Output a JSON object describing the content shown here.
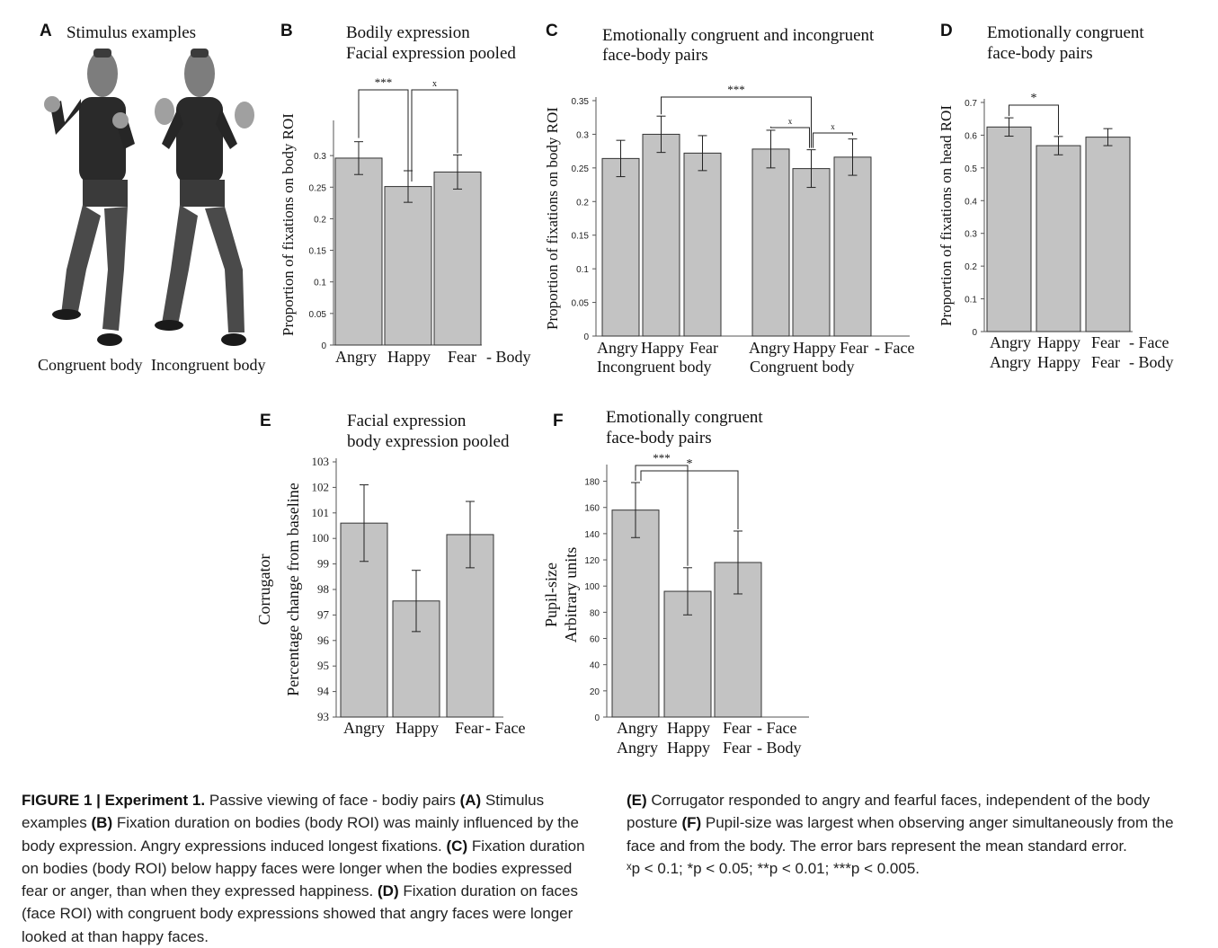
{
  "panels": {
    "A": {
      "letter": "A",
      "title": "Stimulus examples",
      "labels": [
        "Congruent body",
        "Incongruent body"
      ]
    },
    "B": {
      "letter": "B",
      "title_lines": [
        "Bodily expression",
        "Facial expression pooled"
      ],
      "sig": [
        "***",
        "x"
      ]
    },
    "C": {
      "letter": "C",
      "title_lines": [
        "Emotionally congruent and incongruent",
        "face-body pairs"
      ],
      "sig": [
        "***",
        "x",
        "x"
      ]
    },
    "D": {
      "letter": "D",
      "title_lines": [
        "Emotionally congruent",
        "face-body pairs"
      ],
      "sig": [
        "*"
      ]
    },
    "E": {
      "letter": "E",
      "title_lines": [
        "Facial expression",
        "body expression pooled"
      ]
    },
    "F": {
      "letter": "F",
      "title_lines": [
        "Emotionally congruent",
        "face-body pairs"
      ],
      "sig": [
        "***",
        "*"
      ]
    }
  },
  "chart_data": [
    {
      "panel": "B",
      "type": "bar",
      "categories": [
        "Angry",
        "Happy",
        "Fear"
      ],
      "category_suffix": "- Body",
      "values": [
        0.296,
        0.251,
        0.274
      ],
      "errors": [
        0.026,
        0.025,
        0.027
      ],
      "ylabel": "Proportion of fixations on body ROI",
      "ylim": [
        0,
        0.35
      ],
      "yticks": [
        "0",
        "0.05",
        "0.1",
        "0.15",
        "0.2",
        "0.25",
        "0.3"
      ],
      "bar_color": "#c3c3c3"
    },
    {
      "panel": "C",
      "type": "bar",
      "groups": [
        {
          "label": "Incongruent body",
          "categories": [
            "Angry",
            "Happy",
            "Fear"
          ],
          "values": [
            0.264,
            0.3,
            0.272
          ],
          "errors": [
            0.027,
            0.027,
            0.026
          ]
        },
        {
          "label": "Congruent body",
          "categories": [
            "Angry",
            "Happy",
            "Fear"
          ],
          "values": [
            0.278,
            0.249,
            0.266
          ],
          "errors": [
            0.028,
            0.028,
            0.027
          ]
        }
      ],
      "category_suffix": "- Face",
      "ylabel": "Proportion of fixations on body ROI",
      "ylim": [
        0,
        0.35
      ],
      "yticks": [
        "0",
        "0.05",
        "0.1",
        "0.15",
        "0.2",
        "0.25",
        "0.3",
        "0.35"
      ],
      "bar_color": "#c3c3c3"
    },
    {
      "panel": "D",
      "type": "bar",
      "categories": [
        "Angry",
        "Happy",
        "Fear"
      ],
      "categories_row2": [
        "Angry",
        "Happy",
        "Fear"
      ],
      "category_suffix": "- Face",
      "category_suffix_row2": "- Body",
      "values": [
        0.625,
        0.568,
        0.594
      ],
      "errors": [
        0.028,
        0.028,
        0.026
      ],
      "ylabel": "Proportion of fixations on head ROI",
      "ylim": [
        0,
        0.7
      ],
      "yticks": [
        "0",
        "0.1",
        "0.2",
        "0.3",
        "0.4",
        "0.5",
        "0.6",
        "0.7"
      ],
      "bar_color": "#c3c3c3"
    },
    {
      "panel": "E",
      "type": "bar",
      "categories": [
        "Angry",
        "Happy",
        "Fear"
      ],
      "category_suffix": "- Face",
      "values": [
        100.6,
        97.55,
        100.15
      ],
      "errors": [
        1.5,
        1.2,
        1.3
      ],
      "ylabel_lines": [
        "Corrugator",
        "Percentage change from baseline"
      ],
      "ylim": [
        93,
        103
      ],
      "yticks": [
        "93",
        "94",
        "95",
        "96",
        "97",
        "98",
        "99",
        "100",
        "101",
        "102",
        "103"
      ],
      "bar_color": "#c3c3c3"
    },
    {
      "panel": "F",
      "type": "bar",
      "categories": [
        "Angry",
        "Happy",
        "Fear"
      ],
      "categories_row2": [
        "Angry",
        "Happy",
        "Fear"
      ],
      "category_suffix": "- Face",
      "category_suffix_row2": "- Body",
      "values": [
        158,
        96,
        118
      ],
      "errors": [
        21,
        18,
        24
      ],
      "ylabel_lines": [
        "Pupil-size",
        "Arbitrary units"
      ],
      "ylim": [
        0,
        190
      ],
      "yticks": [
        "0",
        "20",
        "40",
        "60",
        "80",
        "100",
        "120",
        "140",
        "160",
        "180"
      ],
      "bar_color": "#c3c3c3"
    }
  ],
  "caption": {
    "label": "FIGURE 1 | Experiment 1.",
    "intro": "Passive viewing of face - bodiy pairs",
    "A_tag": "(A)",
    "A_text": "Stimulus examples",
    "B_tag": "(B)",
    "B_text": "Fixation duration on bodies (body ROI) was mainly influenced by the body expression. Angry expressions induced longest fixations.",
    "C_tag": "(C)",
    "C_text": "Fixation duration on bodies (body ROI) below happy faces were longer when the bodies expressed fear or anger, than when they expressed happiness.",
    "D_tag": "(D)",
    "D_text": "Fixation duration on faces (face ROI) with congruent body expressions showed that angry faces were longer looked at than happy faces.",
    "E_tag": "(E)",
    "E_text": "Corrugator responded to angry and fearful faces, independent of the body posture",
    "F_tag": "(F)",
    "F_text": "Pupil-size was largest when observing anger simultaneously from the face and from the body. The error bars represent the mean standard error.",
    "legend": "ˣp < 0.1;  *p < 0.05;  **p < 0.01;  ***p < 0.005."
  }
}
